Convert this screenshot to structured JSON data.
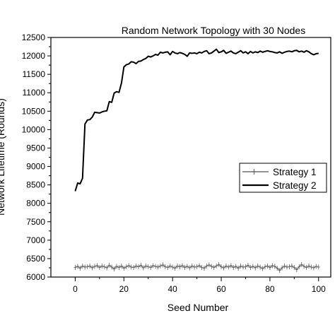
{
  "chart_data": {
    "type": "line",
    "title": "Random Network Topology with 30 Nodes",
    "xlabel": "Seed Number",
    "ylabel": "Network Lifetime (Rounds)",
    "xlim": [
      -10,
      105
    ],
    "ylim": [
      6000,
      12500
    ],
    "xticks": [
      0,
      20,
      40,
      60,
      80,
      100
    ],
    "yticks": [
      6000,
      6500,
      7000,
      7500,
      8000,
      8500,
      9000,
      9500,
      10000,
      10500,
      11000,
      11500,
      12000,
      12500
    ],
    "grid": false,
    "legend": "right",
    "series": [
      {
        "name": "Strategy 1",
        "color": "#6e6e6e",
        "marker": "plus",
        "x": [
          0,
          1,
          2,
          3,
          4,
          5,
          6,
          7,
          8,
          9,
          10,
          11,
          12,
          13,
          14,
          15,
          16,
          17,
          18,
          19,
          20,
          21,
          22,
          23,
          24,
          25,
          26,
          27,
          28,
          29,
          30,
          31,
          32,
          33,
          34,
          35,
          36,
          37,
          38,
          39,
          40,
          41,
          42,
          43,
          44,
          45,
          46,
          47,
          48,
          49,
          50,
          51,
          52,
          53,
          54,
          55,
          56,
          57,
          58,
          59,
          60,
          61,
          62,
          63,
          64,
          65,
          66,
          67,
          68,
          69,
          70,
          71,
          72,
          73,
          74,
          75,
          76,
          77,
          78,
          79,
          80,
          81,
          82,
          83,
          84,
          85,
          86,
          87,
          88,
          89,
          90,
          91,
          92,
          93,
          94,
          95,
          96,
          97,
          98,
          99,
          100
        ],
        "y": [
          6260,
          6290,
          6240,
          6300,
          6270,
          6280,
          6300,
          6250,
          6290,
          6310,
          6260,
          6300,
          6280,
          6250,
          6320,
          6270,
          6220,
          6290,
          6260,
          6300,
          6240,
          6280,
          6310,
          6270,
          6260,
          6300,
          6280,
          6320,
          6250,
          6300,
          6280,
          6260,
          6310,
          6290,
          6270,
          6300,
          6330,
          6280,
          6260,
          6300,
          6270,
          6240,
          6300,
          6280,
          6310,
          6260,
          6290,
          6250,
          6300,
          6270,
          6280,
          6310,
          6260,
          6240,
          6300,
          6330,
          6290,
          6260,
          6300,
          6340,
          6280,
          6250,
          6300,
          6270,
          6310,
          6260,
          6290,
          6240,
          6300,
          6270,
          6280,
          6320,
          6260,
          6290,
          6250,
          6300,
          6270,
          6230,
          6280,
          6300,
          6260,
          6310,
          6290,
          6240,
          6180,
          6250,
          6300,
          6270,
          6280,
          6300,
          6260,
          6200,
          6280,
          6340,
          6290,
          6260,
          6300,
          6270,
          6250,
          6290,
          6270
        ]
      },
      {
        "name": "Strategy 2",
        "color": "#000000",
        "marker": "none",
        "x": [
          0,
          1,
          2,
          3,
          4,
          5,
          6,
          7,
          8,
          9,
          10,
          11,
          12,
          13,
          14,
          15,
          16,
          17,
          18,
          19,
          20,
          21,
          22,
          23,
          24,
          25,
          26,
          27,
          28,
          29,
          30,
          31,
          32,
          33,
          34,
          35,
          36,
          37,
          38,
          39,
          40,
          41,
          42,
          43,
          44,
          45,
          46,
          47,
          48,
          49,
          50,
          51,
          52,
          53,
          54,
          55,
          56,
          57,
          58,
          59,
          60,
          61,
          62,
          63,
          64,
          65,
          66,
          67,
          68,
          69,
          70,
          71,
          72,
          73,
          74,
          75,
          76,
          77,
          78,
          79,
          80,
          81,
          82,
          83,
          84,
          85,
          86,
          87,
          88,
          89,
          90,
          91,
          92,
          93,
          94,
          95,
          96,
          97,
          98,
          99,
          100
        ],
        "y": [
          8330,
          8550,
          8530,
          8680,
          10150,
          10260,
          10270,
          10340,
          10470,
          10460,
          10450,
          10480,
          10500,
          10510,
          10760,
          10740,
          10990,
          11030,
          11010,
          11260,
          11700,
          11760,
          11780,
          11840,
          11830,
          11790,
          11850,
          11860,
          11900,
          11930,
          11990,
          11970,
          12000,
          12040,
          12020,
          12100,
          12080,
          12100,
          12110,
          12030,
          12120,
          12080,
          12060,
          12090,
          12070,
          12040,
          11990,
          12080,
          12070,
          12080,
          12060,
          12100,
          12080,
          12120,
          12140,
          12060,
          12080,
          12130,
          12180,
          12090,
          12110,
          12150,
          12070,
          12100,
          12130,
          12080,
          12060,
          12100,
          12140,
          12080,
          12110,
          12060,
          12120,
          12080,
          12110,
          12090,
          12130,
          12100,
          12120,
          12140,
          12120,
          12110,
          12090,
          12080,
          12110,
          12070,
          12100,
          12120,
          12130,
          12110,
          12140,
          12150,
          12110,
          12130,
          12100,
          12140,
          12110,
          12060,
          12030,
          12060,
          12070
        ]
      }
    ]
  }
}
